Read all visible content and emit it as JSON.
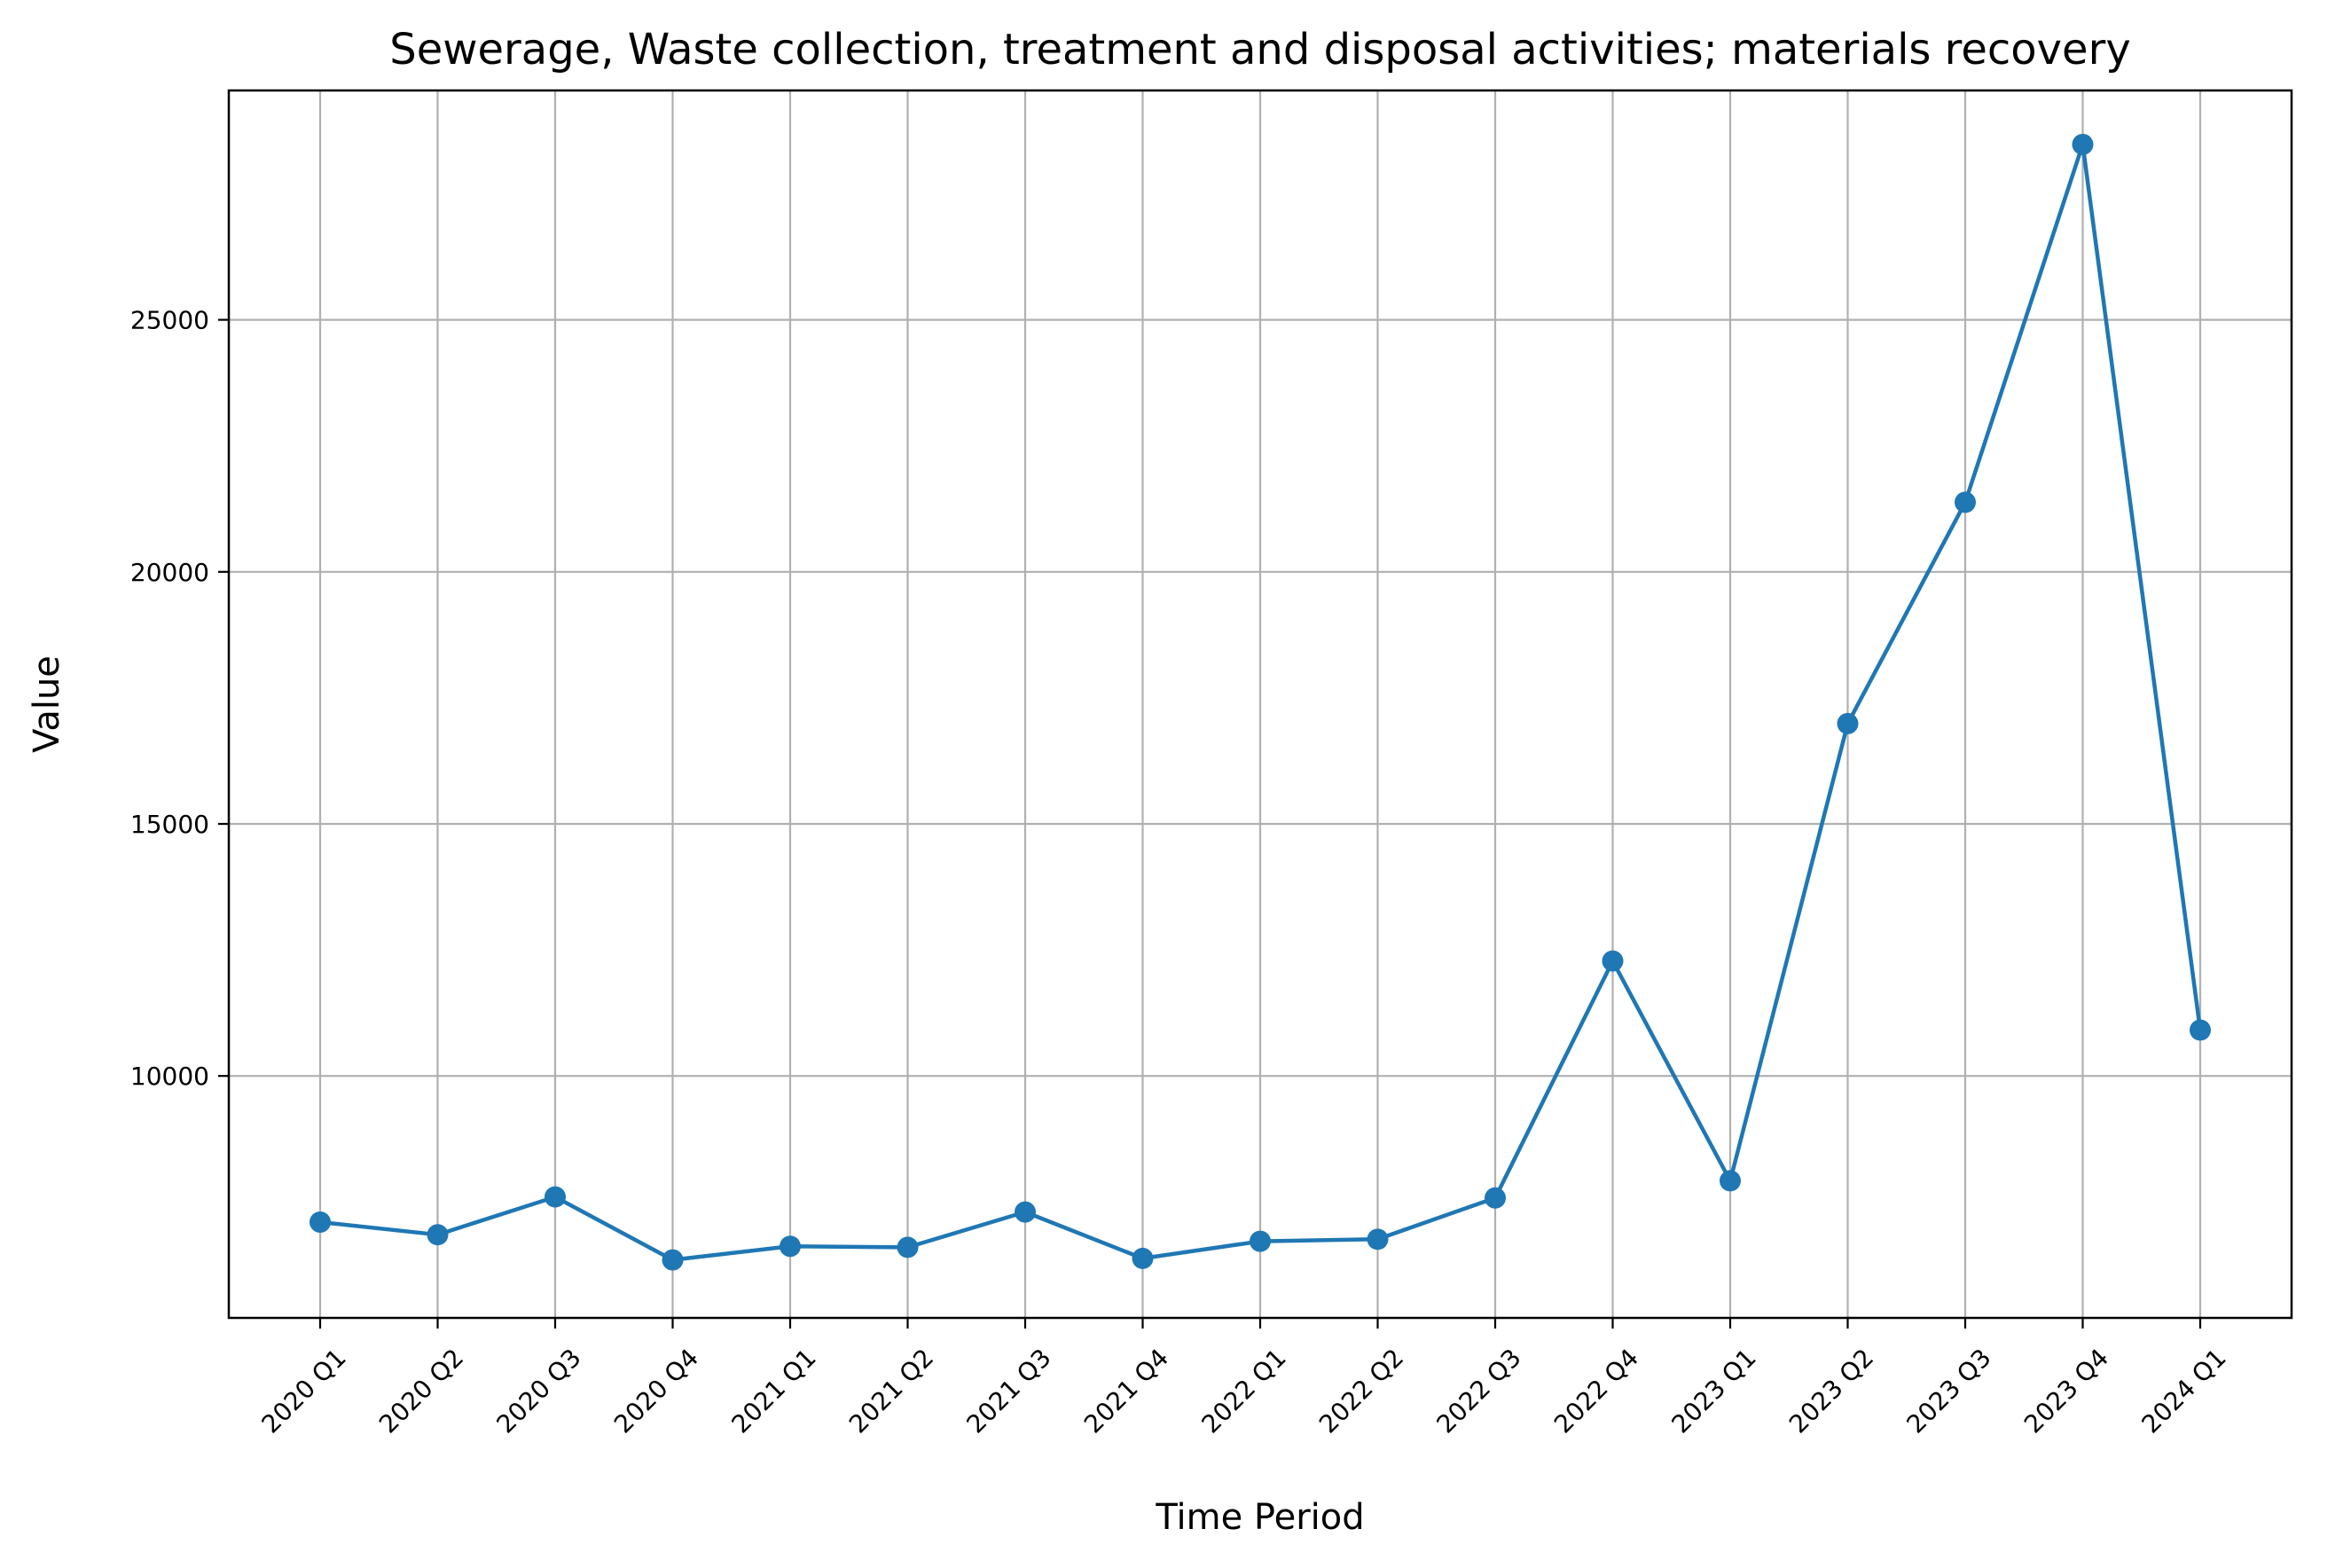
{
  "chart_data": {
    "type": "line",
    "title": "Sewerage, Waste collection, treatment and disposal activities; materials recovery",
    "xlabel": "Time Period",
    "ylabel": "Value",
    "categories": [
      "2020 Q1",
      "2020 Q2",
      "2020 Q3",
      "2020 Q4",
      "2021 Q1",
      "2021 Q2",
      "2021 Q3",
      "2021 Q4",
      "2022 Q1",
      "2022 Q2",
      "2022 Q3",
      "2022 Q4",
      "2023 Q1",
      "2023 Q2",
      "2023 Q3",
      "2023 Q4",
      "2024 Q1"
    ],
    "series": [
      {
        "values": [
          7100,
          6850,
          7600,
          6350,
          6620,
          6600,
          7300,
          6380,
          6720,
          6760,
          7580,
          12280,
          7920,
          16990,
          21380,
          28480,
          10910
        ],
        "color": "#1f77b4",
        "marker": "circle"
      }
    ],
    "yticks": [
      10000,
      15000,
      20000,
      25000
    ],
    "ylim": [
      5200,
      29550
    ],
    "grid": true,
    "legend": false
  }
}
